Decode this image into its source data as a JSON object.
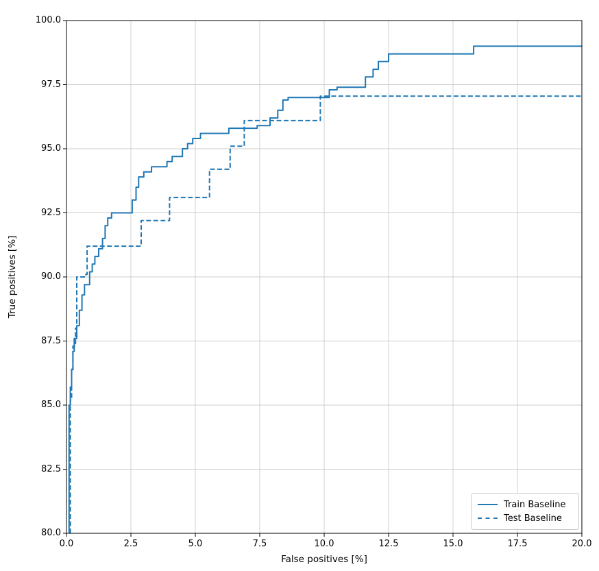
{
  "chart_data": {
    "type": "line",
    "subtype": "step",
    "title": "",
    "xlabel": "False positives [%]",
    "ylabel": "True positives [%]",
    "xlim": [
      0,
      20
    ],
    "ylim": [
      80,
      100
    ],
    "xtick_labels": [
      "0.0",
      "2.5",
      "5.0",
      "7.5",
      "10.0",
      "12.5",
      "15.0",
      "17.5",
      "20.0"
    ],
    "ytick_labels": [
      "80.0",
      "82.5",
      "85.0",
      "87.5",
      "90.0",
      "92.5",
      "95.0",
      "97.5",
      "100.0"
    ],
    "grid": true,
    "grid_color": "#cccccc",
    "accent_color": "#1f77b4",
    "legend_position": "lower right",
    "series": [
      {
        "name": "Train Baseline",
        "color": "#1f77b4",
        "linestyle": "solid",
        "points": [
          [
            0.1,
            80.0
          ],
          [
            0.1,
            85.0
          ],
          [
            0.15,
            85.0
          ],
          [
            0.15,
            85.7
          ],
          [
            0.2,
            85.7
          ],
          [
            0.2,
            86.4
          ],
          [
            0.25,
            86.4
          ],
          [
            0.25,
            87.1
          ],
          [
            0.3,
            87.1
          ],
          [
            0.3,
            87.6
          ],
          [
            0.4,
            87.6
          ],
          [
            0.4,
            88.1
          ],
          [
            0.5,
            88.1
          ],
          [
            0.5,
            88.7
          ],
          [
            0.6,
            88.7
          ],
          [
            0.6,
            89.3
          ],
          [
            0.7,
            89.3
          ],
          [
            0.7,
            89.7
          ],
          [
            0.9,
            89.7
          ],
          [
            0.9,
            90.2
          ],
          [
            1.0,
            90.2
          ],
          [
            1.0,
            90.5
          ],
          [
            1.1,
            90.5
          ],
          [
            1.1,
            90.8
          ],
          [
            1.25,
            90.8
          ],
          [
            1.25,
            91.1
          ],
          [
            1.4,
            91.1
          ],
          [
            1.4,
            91.5
          ],
          [
            1.5,
            91.5
          ],
          [
            1.5,
            92.0
          ],
          [
            1.6,
            92.0
          ],
          [
            1.6,
            92.3
          ],
          [
            1.75,
            92.3
          ],
          [
            1.75,
            92.5
          ],
          [
            2.55,
            92.5
          ],
          [
            2.55,
            93.0
          ],
          [
            2.7,
            93.0
          ],
          [
            2.7,
            93.5
          ],
          [
            2.8,
            93.5
          ],
          [
            2.8,
            93.9
          ],
          [
            3.0,
            93.9
          ],
          [
            3.0,
            94.1
          ],
          [
            3.3,
            94.1
          ],
          [
            3.3,
            94.3
          ],
          [
            3.9,
            94.3
          ],
          [
            3.9,
            94.5
          ],
          [
            4.1,
            94.5
          ],
          [
            4.1,
            94.7
          ],
          [
            4.5,
            94.7
          ],
          [
            4.5,
            95.0
          ],
          [
            4.7,
            95.0
          ],
          [
            4.7,
            95.2
          ],
          [
            4.9,
            95.2
          ],
          [
            4.9,
            95.4
          ],
          [
            5.2,
            95.4
          ],
          [
            5.2,
            95.6
          ],
          [
            6.3,
            95.6
          ],
          [
            6.3,
            95.8
          ],
          [
            7.4,
            95.8
          ],
          [
            7.4,
            95.9
          ],
          [
            7.9,
            95.9
          ],
          [
            7.9,
            96.2
          ],
          [
            8.2,
            96.2
          ],
          [
            8.2,
            96.5
          ],
          [
            8.4,
            96.5
          ],
          [
            8.4,
            96.9
          ],
          [
            8.6,
            96.9
          ],
          [
            8.6,
            97.0
          ],
          [
            10.2,
            97.0
          ],
          [
            10.2,
            97.3
          ],
          [
            10.5,
            97.3
          ],
          [
            10.5,
            97.4
          ],
          [
            11.6,
            97.4
          ],
          [
            11.6,
            97.8
          ],
          [
            11.9,
            97.8
          ],
          [
            11.9,
            98.1
          ],
          [
            12.1,
            98.1
          ],
          [
            12.1,
            98.4
          ],
          [
            12.5,
            98.4
          ],
          [
            12.5,
            98.7
          ],
          [
            15.8,
            98.7
          ],
          [
            15.8,
            99.0
          ],
          [
            20.0,
            99.0
          ]
        ]
      },
      {
        "name": "Test Baseline",
        "color": "#1f77b4",
        "linestyle": "dashed",
        "points": [
          [
            0.15,
            80.0
          ],
          [
            0.15,
            85.2
          ],
          [
            0.2,
            85.2
          ],
          [
            0.2,
            86.3
          ],
          [
            0.25,
            86.3
          ],
          [
            0.25,
            87.3
          ],
          [
            0.35,
            87.3
          ],
          [
            0.35,
            88.0
          ],
          [
            0.4,
            88.0
          ],
          [
            0.4,
            90.0
          ],
          [
            0.75,
            90.0
          ],
          [
            0.75,
            90.1
          ],
          [
            0.8,
            90.1
          ],
          [
            0.8,
            91.2
          ],
          [
            2.9,
            91.2
          ],
          [
            2.9,
            92.2
          ],
          [
            4.0,
            92.2
          ],
          [
            4.0,
            93.1
          ],
          [
            5.55,
            93.1
          ],
          [
            5.55,
            94.2
          ],
          [
            6.35,
            94.2
          ],
          [
            6.35,
            95.1
          ],
          [
            6.9,
            95.1
          ],
          [
            6.9,
            96.1
          ],
          [
            9.85,
            96.1
          ],
          [
            9.85,
            97.05
          ],
          [
            20.0,
            97.05
          ]
        ]
      }
    ]
  },
  "legend": {
    "items": [
      {
        "label": "Train Baseline"
      },
      {
        "label": "Test Baseline"
      }
    ]
  }
}
